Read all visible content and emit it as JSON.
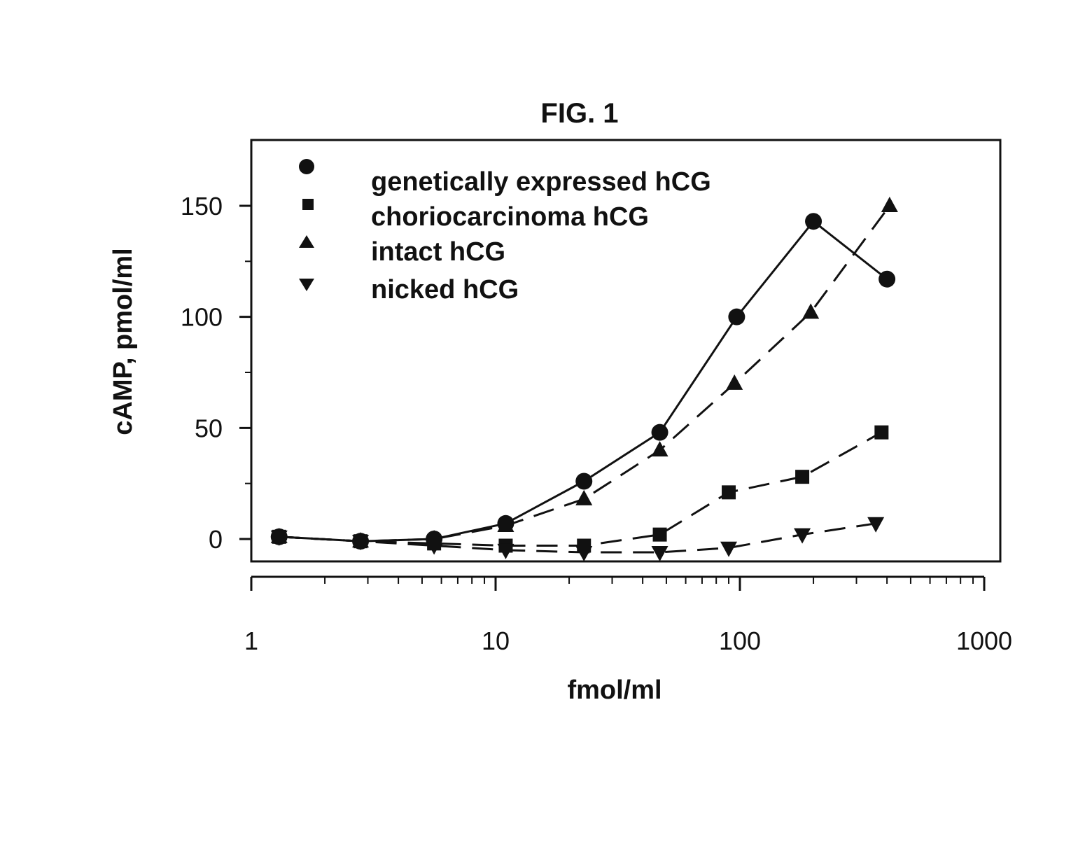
{
  "chart_data": {
    "type": "line",
    "title": "FIG. 1",
    "xlabel": "fmol/ml",
    "ylabel": "cAMP, pmol/ml",
    "xscale": "log",
    "xlim": [
      1,
      1000
    ],
    "ylim": [
      -10,
      175
    ],
    "xticks": [
      1,
      10,
      100,
      1000
    ],
    "xtick_labels": [
      "1",
      "10",
      "100",
      "1000"
    ],
    "yticks": [
      0,
      50,
      100,
      150
    ],
    "ytick_labels": [
      "0",
      "50",
      "100",
      "150"
    ],
    "grid": false,
    "legend_position": "top-left",
    "colors": {
      "ink": "#111111",
      "background": "#ffffff"
    },
    "series": [
      {
        "name": "genetically expressed hCG",
        "marker": "circle",
        "line": "solid",
        "x": [
          1.3,
          2.8,
          5.6,
          11,
          23,
          47,
          97,
          200,
          400
        ],
        "y": [
          1,
          -1,
          0,
          7,
          26,
          48,
          100,
          143,
          117
        ]
      },
      {
        "name": "choriocarcinoma hCG",
        "marker": "square",
        "line": "dashed",
        "x": [
          1.3,
          2.8,
          5.6,
          11,
          23,
          47,
          90,
          180,
          380
        ],
        "y": [
          1,
          -1,
          -2,
          -3,
          -3,
          2,
          21,
          28,
          48
        ]
      },
      {
        "name": "intact hCG",
        "marker": "triangle-up",
        "line": "dashed",
        "x": [
          1.3,
          2.8,
          5.6,
          11,
          23,
          47,
          95,
          195,
          410
        ],
        "y": [
          1,
          -1,
          0,
          6,
          18,
          40,
          70,
          102,
          150
        ]
      },
      {
        "name": "nicked hCG",
        "marker": "triangle-down",
        "line": "dashed",
        "x": [
          1.3,
          2.8,
          5.6,
          11,
          23,
          47,
          90,
          180,
          360
        ],
        "y": [
          1,
          -1,
          -3,
          -5,
          -6,
          -6,
          -4,
          2,
          7
        ]
      }
    ]
  }
}
